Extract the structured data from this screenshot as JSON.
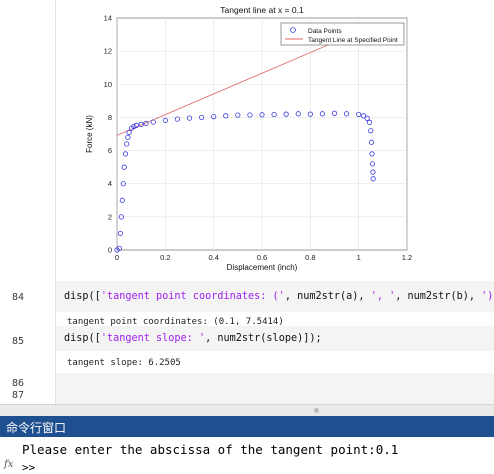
{
  "chart_data": {
    "type": "scatter",
    "title": "Tangent line at x = 0.1",
    "xlabel": "Displacement (inch)",
    "ylabel": "Force (kN)",
    "xlim": [
      0,
      1.2
    ],
    "ylim": [
      0,
      14
    ],
    "xticks": [
      "0",
      "0.2",
      "0.4",
      "0.6",
      "0.8",
      "1",
      "1.2"
    ],
    "yticks": [
      "0",
      "2",
      "4",
      "6",
      "8",
      "10",
      "12",
      "14"
    ],
    "grid": true,
    "legend_position": "top-right",
    "series": [
      {
        "name": "Data Points",
        "style": "markers",
        "color": "#3a3ae0",
        "x": [
          0.0,
          0.01,
          0.014,
          0.018,
          0.022,
          0.026,
          0.03,
          0.035,
          0.04,
          0.045,
          0.05,
          0.06,
          0.07,
          0.08,
          0.1,
          0.12,
          0.15,
          0.2,
          0.25,
          0.3,
          0.35,
          0.4,
          0.45,
          0.5,
          0.55,
          0.6,
          0.65,
          0.7,
          0.75,
          0.8,
          0.85,
          0.9,
          0.95,
          1.0,
          1.02,
          1.035,
          1.045,
          1.05,
          1.053,
          1.055,
          1.057,
          1.059,
          1.06
        ],
        "y": [
          0.0,
          0.1,
          1.0,
          2.0,
          3.0,
          4.0,
          5.0,
          5.8,
          6.4,
          6.8,
          7.1,
          7.35,
          7.45,
          7.52,
          7.58,
          7.64,
          7.72,
          7.82,
          7.9,
          7.96,
          8.0,
          8.05,
          8.1,
          8.14,
          8.15,
          8.16,
          8.18,
          8.2,
          8.22,
          8.2,
          8.22,
          8.25,
          8.22,
          8.18,
          8.1,
          7.95,
          7.7,
          7.2,
          6.5,
          5.8,
          5.2,
          4.7,
          4.3
        ]
      },
      {
        "name": "Tangent Line at Specified Point",
        "style": "line",
        "color": "#e06060",
        "x": [
          0.0,
          1.0
        ],
        "y": [
          6.9164,
          13.1669
        ]
      }
    ]
  },
  "editor": {
    "lines": [
      {
        "num": "84",
        "code_prefix": "disp([",
        "code_str1": "'tangent point coordinates: ('",
        "code_mid1": ", num2str(a), ",
        "code_str2": "', '",
        "code_mid2": ", num2str(b), ",
        "code_str3": "')'",
        "code_suffix": "]);",
        "output": "tangent point coordinates: (0.1, 7.5414)"
      },
      {
        "num": "85",
        "code_prefix": "disp([",
        "code_str1": "'tangent slope: '",
        "code_mid1": ", num2str(slope)]);",
        "output": "tangent slope: 6.2505"
      },
      {
        "num": "86"
      },
      {
        "num": "87"
      }
    ]
  },
  "command_window": {
    "title": "命令行窗口",
    "prompt_text": "Please enter the abscissa of the tangent point:0.1",
    "fx_label": "fx",
    "cursor": ">>"
  }
}
